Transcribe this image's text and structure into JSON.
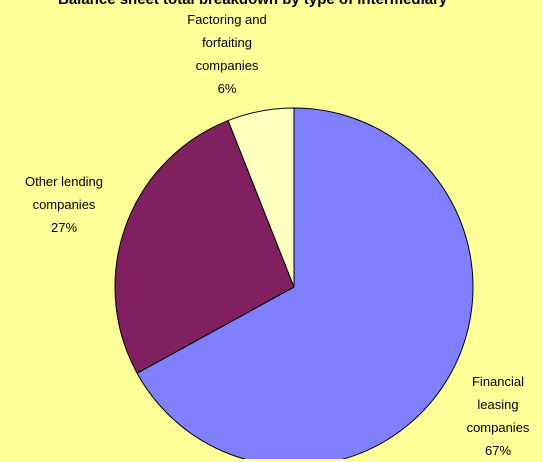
{
  "chart_data": {
    "type": "pie",
    "title": "Balance sheet total breakdown by type of intermediary",
    "categories": [
      "Financial leasing companies",
      "Other lending companies",
      "Factoring and forfaiting companies"
    ],
    "values": [
      67,
      27,
      6
    ],
    "value_labels": [
      "67%",
      "27%",
      "6%"
    ],
    "colors": [
      "#8080ff",
      "#802060",
      "#ffffc0"
    ]
  }
}
